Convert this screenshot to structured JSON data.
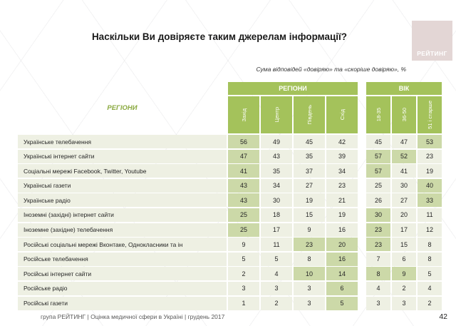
{
  "page": {
    "title": "Наскільки Ви довіряєте таким джерелам інформації?",
    "subtitle": "Сума відповідей «довіряю» та «скоріше довіряю», %",
    "footer": "група РЕЙТИНГ  |  Оцінка медичної сфери в Україні  |  грудень 2017",
    "page_number": "42",
    "logo_text": "РЕЙТИНГ"
  },
  "colors": {
    "header_green": "#a4c25b",
    "cell_bg": "#eef0e3",
    "cell_highlight": "#ccd9a8",
    "row_header_text": "#8aa93f",
    "logo_bg": "#e3d6d5"
  },
  "chart_data": {
    "type": "table",
    "title": "Наскільки Ви довіряєте таким джерелам інформації?",
    "subtitle": "Сума відповідей «довіряю» та «скоріше довіряю», %",
    "units": "%",
    "row_header": "РЕГІОНИ",
    "column_groups": [
      {
        "label": "РЕГІОНИ",
        "columns": [
          "Захід",
          "Центр",
          "Південь",
          "Схід"
        ]
      },
      {
        "label": "ВІК",
        "columns": [
          "18-35",
          "36-50",
          "51 і старше"
        ]
      }
    ],
    "rows": [
      {
        "label": "Українське телебачення",
        "region_values": [
          56,
          49,
          45,
          42
        ],
        "region_highlight": [
          true,
          false,
          false,
          false
        ],
        "age_values": [
          45,
          47,
          53
        ],
        "age_highlight": [
          false,
          false,
          true
        ]
      },
      {
        "label": "Українські інтернет сайти",
        "region_values": [
          47,
          43,
          35,
          39
        ],
        "region_highlight": [
          true,
          false,
          false,
          false
        ],
        "age_values": [
          57,
          52,
          23
        ],
        "age_highlight": [
          true,
          true,
          false
        ]
      },
      {
        "label": "Соціальні мережі Facebook, Twitter, Youtube",
        "region_values": [
          41,
          35,
          37,
          34
        ],
        "region_highlight": [
          true,
          false,
          false,
          false
        ],
        "age_values": [
          57,
          41,
          19
        ],
        "age_highlight": [
          true,
          false,
          false
        ]
      },
      {
        "label": "Українські газети",
        "region_values": [
          43,
          34,
          27,
          23
        ],
        "region_highlight": [
          true,
          false,
          false,
          false
        ],
        "age_values": [
          25,
          30,
          40
        ],
        "age_highlight": [
          false,
          false,
          true
        ]
      },
      {
        "label": "Українське радіо",
        "region_values": [
          43,
          30,
          19,
          21
        ],
        "region_highlight": [
          true,
          false,
          false,
          false
        ],
        "age_values": [
          26,
          27,
          33
        ],
        "age_highlight": [
          false,
          false,
          true
        ]
      },
      {
        "label": "Іноземні (західні) інтернет сайти",
        "region_values": [
          25,
          18,
          15,
          19
        ],
        "region_highlight": [
          true,
          false,
          false,
          false
        ],
        "age_values": [
          30,
          20,
          11
        ],
        "age_highlight": [
          true,
          false,
          false
        ]
      },
      {
        "label": "Іноземне (західне) телебачення",
        "region_values": [
          25,
          17,
          9,
          16
        ],
        "region_highlight": [
          true,
          false,
          false,
          false
        ],
        "age_values": [
          23,
          17,
          12
        ],
        "age_highlight": [
          true,
          false,
          false
        ]
      },
      {
        "label": "Російські соціальні мережі Вконтаке, Однокласники та ін",
        "region_values": [
          9,
          11,
          23,
          20
        ],
        "region_highlight": [
          false,
          false,
          true,
          true
        ],
        "age_values": [
          23,
          15,
          8
        ],
        "age_highlight": [
          true,
          false,
          false
        ]
      },
      {
        "label": "Російське телебачення",
        "region_values": [
          5,
          5,
          8,
          16
        ],
        "region_highlight": [
          false,
          false,
          false,
          true
        ],
        "age_values": [
          7,
          6,
          8
        ],
        "age_highlight": [
          false,
          false,
          false
        ]
      },
      {
        "label": "Російські інтернет сайти",
        "region_values": [
          2,
          4,
          10,
          14
        ],
        "region_highlight": [
          false,
          false,
          true,
          true
        ],
        "age_values": [
          8,
          9,
          5
        ],
        "age_highlight": [
          true,
          true,
          false
        ]
      },
      {
        "label": "Російське радіо",
        "region_values": [
          3,
          3,
          3,
          6
        ],
        "region_highlight": [
          false,
          false,
          false,
          true
        ],
        "age_values": [
          4,
          2,
          4
        ],
        "age_highlight": [
          false,
          false,
          false
        ]
      },
      {
        "label": "Російські газети",
        "region_values": [
          1,
          2,
          3,
          5
        ],
        "region_highlight": [
          false,
          false,
          false,
          true
        ],
        "age_values": [
          3,
          3,
          2
        ],
        "age_highlight": [
          false,
          false,
          false
        ]
      }
    ]
  }
}
